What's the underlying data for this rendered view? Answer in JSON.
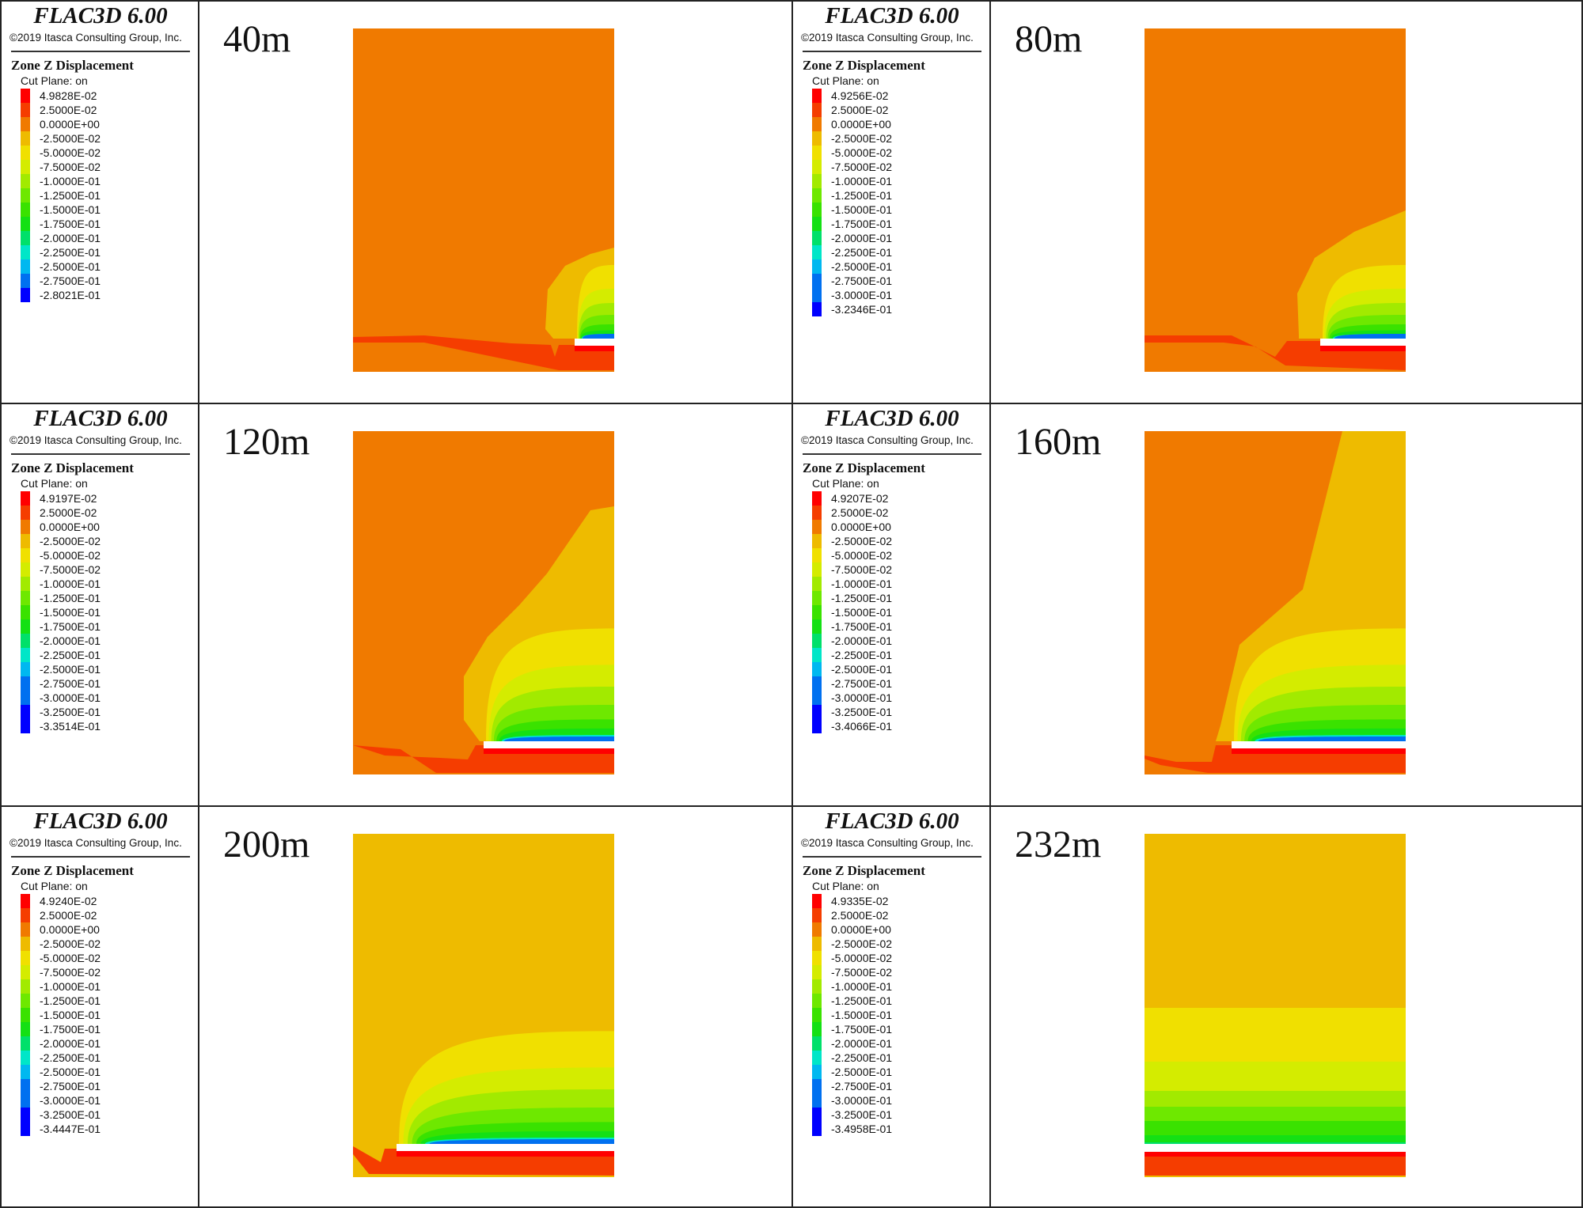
{
  "app_title": "FLAC3D 6.00",
  "copyright": "©2019 Itasca Consulting Group, Inc.",
  "legend_title": "Zone Z Displacement",
  "cut_plane": "Cut Plane: on",
  "colors": {
    "panel_border": "#222222",
    "tunnel": "#ffffff"
  },
  "band_colors": [
    "#ff0000",
    "#f53d00",
    "#f07a00",
    "#eebb00",
    "#f0e000",
    "#d4ec00",
    "#a2ea00",
    "#6ee800",
    "#3ae200",
    "#14e014",
    "#00e06a",
    "#00e6c8",
    "#00b8f0",
    "#0070f0",
    "#0000ff"
  ],
  "panels": [
    {
      "stage": "40m",
      "legend": [
        "4.9828E-02",
        "2.5000E-02",
        "0.0000E+00",
        "-2.5000E-02",
        "-5.0000E-02",
        "-7.5000E-02",
        "-1.0000E-01",
        "-1.2500E-01",
        "-1.5000E-01",
        "-1.7500E-01",
        "-2.0000E-01",
        "-2.2500E-01",
        "-2.5000E-01",
        "-2.7500E-01",
        "-2.8021E-01"
      ]
    },
    {
      "stage": "80m",
      "legend": [
        "4.9256E-02",
        "2.5000E-02",
        "0.0000E+00",
        "-2.5000E-02",
        "-5.0000E-02",
        "-7.5000E-02",
        "-1.0000E-01",
        "-1.2500E-01",
        "-1.5000E-01",
        "-1.7500E-01",
        "-2.0000E-01",
        "-2.2500E-01",
        "-2.5000E-01",
        "-2.7500E-01",
        "-3.0000E-01",
        "-3.2346E-01"
      ]
    },
    {
      "stage": "120m",
      "legend": [
        "4.9197E-02",
        "2.5000E-02",
        "0.0000E+00",
        "-2.5000E-02",
        "-5.0000E-02",
        "-7.5000E-02",
        "-1.0000E-01",
        "-1.2500E-01",
        "-1.5000E-01",
        "-1.7500E-01",
        "-2.0000E-01",
        "-2.2500E-01",
        "-2.5000E-01",
        "-2.7500E-01",
        "-3.0000E-01",
        "-3.2500E-01",
        "-3.3514E-01"
      ]
    },
    {
      "stage": "160m",
      "legend": [
        "4.9207E-02",
        "2.5000E-02",
        "0.0000E+00",
        "-2.5000E-02",
        "-5.0000E-02",
        "-7.5000E-02",
        "-1.0000E-01",
        "-1.2500E-01",
        "-1.5000E-01",
        "-1.7500E-01",
        "-2.0000E-01",
        "-2.2500E-01",
        "-2.5000E-01",
        "-2.7500E-01",
        "-3.0000E-01",
        "-3.2500E-01",
        "-3.4066E-01"
      ]
    },
    {
      "stage": "200m",
      "legend": [
        "4.9240E-02",
        "2.5000E-02",
        "0.0000E+00",
        "-2.5000E-02",
        "-5.0000E-02",
        "-7.5000E-02",
        "-1.0000E-01",
        "-1.2500E-01",
        "-1.5000E-01",
        "-1.7500E-01",
        "-2.0000E-01",
        "-2.2500E-01",
        "-2.5000E-01",
        "-2.7500E-01",
        "-3.0000E-01",
        "-3.2500E-01",
        "-3.4447E-01"
      ]
    },
    {
      "stage": "232m",
      "legend": [
        "4.9335E-02",
        "2.5000E-02",
        "0.0000E+00",
        "-2.5000E-02",
        "-5.0000E-02",
        "-7.5000E-02",
        "-1.0000E-01",
        "-1.2500E-01",
        "-1.5000E-01",
        "-1.7500E-01",
        "-2.0000E-01",
        "-2.2500E-01",
        "-2.5000E-01",
        "-2.7500E-01",
        "-3.0000E-01",
        "-3.2500E-01",
        "-3.4958E-01"
      ]
    }
  ]
}
